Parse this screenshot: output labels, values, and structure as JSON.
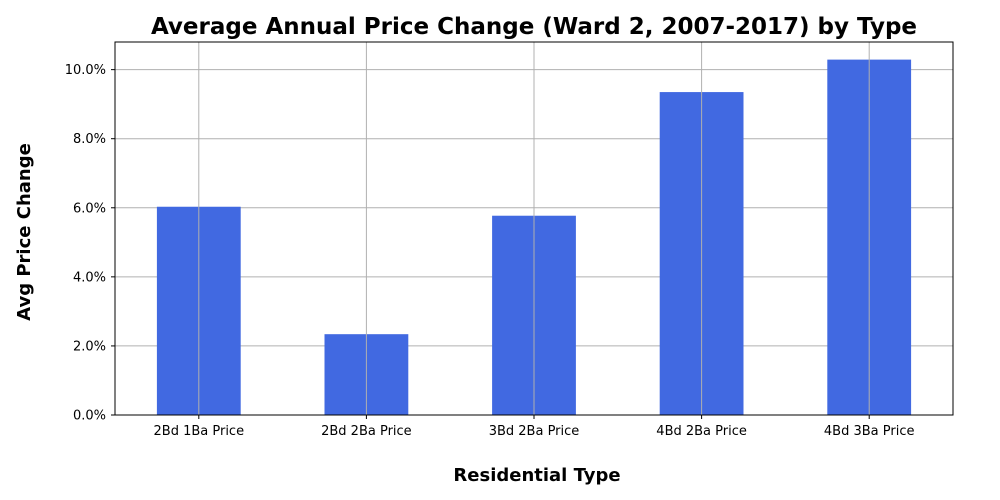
{
  "chart_data": {
    "type": "bar",
    "title": "Average Annual Price Change (Ward 2, 2007-2017) by Type",
    "xlabel": "Residential Type",
    "ylabel": "Avg Price Change",
    "categories": [
      "2Bd 1Ba Price",
      "2Bd 2Ba Price",
      "3Bd 2Ba Price",
      "4Bd 2Ba Price",
      "4Bd 3Ba Price"
    ],
    "values": [
      0.0603,
      0.0234,
      0.0577,
      0.0935,
      0.1029
    ],
    "ylim": [
      0,
      0.108
    ],
    "yticks": [
      0.0,
      0.02,
      0.04,
      0.06,
      0.08,
      0.1
    ],
    "ytick_labels": [
      "0.0%",
      "2.0%",
      "4.0%",
      "6.0%",
      "8.0%",
      "10.0%"
    ],
    "grid": true,
    "bar_color": "#4169e1",
    "grid_color": "#b0b0b0"
  }
}
